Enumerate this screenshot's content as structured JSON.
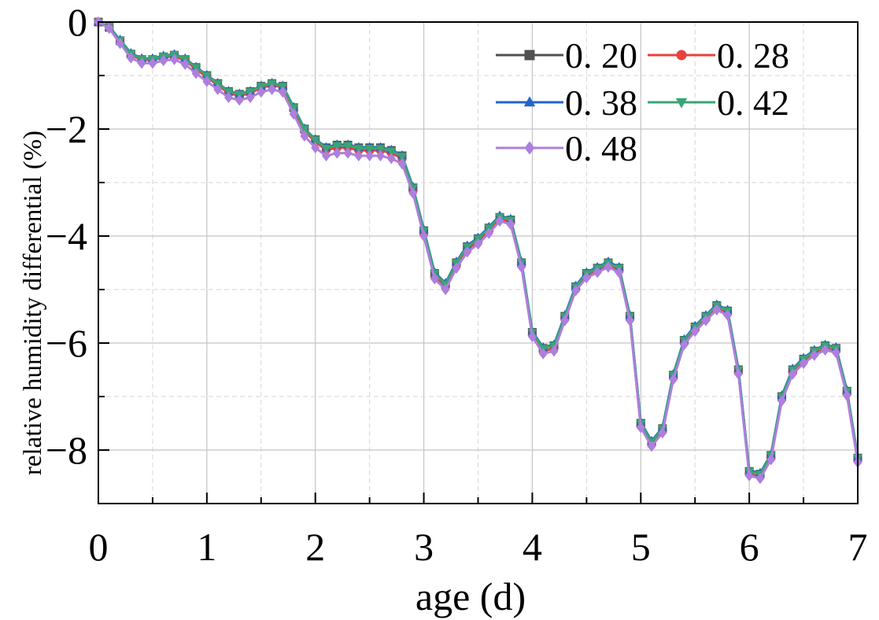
{
  "chart_data": {
    "type": "line",
    "xlabel": "age (d)",
    "ylabel": "relative humidity differential (%)",
    "xlim": [
      0,
      7
    ],
    "ylim": [
      -9,
      0
    ],
    "xticks": [
      0,
      1,
      2,
      3,
      4,
      5,
      6,
      7
    ],
    "yticks": [
      0,
      -2,
      -4,
      -6,
      -8
    ],
    "xtick_labels": [
      "0",
      "1",
      "2",
      "3",
      "4",
      "5",
      "6",
      "7"
    ],
    "ytick_labels": [
      "0",
      "−2",
      "−4",
      "−6",
      "−8"
    ],
    "grid": true,
    "legend_position": "top-right",
    "x": [
      0,
      0.1,
      0.2,
      0.3,
      0.4,
      0.5,
      0.6,
      0.7,
      0.8,
      0.9,
      1.0,
      1.1,
      1.2,
      1.3,
      1.4,
      1.5,
      1.6,
      1.7,
      1.8,
      1.9,
      2.0,
      2.1,
      2.2,
      2.3,
      2.4,
      2.5,
      2.6,
      2.7,
      2.8,
      2.9,
      3.0,
      3.1,
      3.2,
      3.3,
      3.4,
      3.5,
      3.6,
      3.7,
      3.8,
      3.9,
      4.0,
      4.1,
      4.2,
      4.3,
      4.4,
      4.5,
      4.6,
      4.7,
      4.8,
      4.9,
      5.0,
      5.1,
      5.2,
      5.3,
      5.4,
      5.5,
      5.6,
      5.7,
      5.8,
      5.9,
      6.0,
      6.1,
      6.2,
      6.3,
      6.4,
      6.5,
      6.6,
      6.7,
      6.8,
      6.9,
      7.0
    ],
    "series": [
      {
        "name": "0. 20",
        "color": "#505050",
        "marker": "square",
        "values": [
          0,
          -0.1,
          -0.35,
          -0.6,
          -0.7,
          -0.7,
          -0.65,
          -0.62,
          -0.7,
          -0.85,
          -1.0,
          -1.15,
          -1.3,
          -1.35,
          -1.3,
          -1.2,
          -1.15,
          -1.2,
          -1.6,
          -2.0,
          -2.2,
          -2.35,
          -2.3,
          -2.3,
          -2.35,
          -2.35,
          -2.35,
          -2.4,
          -2.5,
          -3.1,
          -3.9,
          -4.7,
          -4.9,
          -4.5,
          -4.2,
          -4.05,
          -3.85,
          -3.65,
          -3.7,
          -4.5,
          -5.8,
          -6.1,
          -6.05,
          -5.5,
          -4.95,
          -4.7,
          -4.6,
          -4.5,
          -4.6,
          -5.5,
          -7.5,
          -7.85,
          -7.6,
          -6.6,
          -5.95,
          -5.7,
          -5.5,
          -5.3,
          -5.4,
          -6.5,
          -8.4,
          -8.45,
          -8.1,
          -7.0,
          -6.5,
          -6.3,
          -6.15,
          -6.05,
          -6.1,
          -6.9,
          -8.15
        ]
      },
      {
        "name": "0. 28",
        "color": "#e8413d",
        "marker": "circle",
        "values": [
          0,
          -0.1,
          -0.36,
          -0.61,
          -0.71,
          -0.71,
          -0.66,
          -0.64,
          -0.72,
          -0.88,
          -1.03,
          -1.18,
          -1.33,
          -1.38,
          -1.33,
          -1.23,
          -1.18,
          -1.22,
          -1.63,
          -2.04,
          -2.24,
          -2.39,
          -2.35,
          -2.35,
          -2.4,
          -2.4,
          -2.4,
          -2.45,
          -2.55,
          -3.15,
          -3.95,
          -4.75,
          -4.95,
          -4.55,
          -4.25,
          -4.1,
          -3.9,
          -3.68,
          -3.75,
          -4.55,
          -5.85,
          -6.15,
          -6.1,
          -5.55,
          -5.0,
          -4.75,
          -4.65,
          -4.55,
          -4.65,
          -5.55,
          -7.55,
          -7.9,
          -7.65,
          -6.65,
          -6.0,
          -5.75,
          -5.55,
          -5.35,
          -5.45,
          -6.55,
          -8.45,
          -8.5,
          -8.15,
          -7.05,
          -6.55,
          -6.35,
          -6.2,
          -6.1,
          -6.15,
          -6.95,
          -8.2
        ]
      },
      {
        "name": "0. 38",
        "color": "#2166c8",
        "marker": "triangle-up",
        "values": [
          0,
          -0.09,
          -0.33,
          -0.58,
          -0.68,
          -0.68,
          -0.63,
          -0.6,
          -0.68,
          -0.84,
          -0.99,
          -1.14,
          -1.29,
          -1.34,
          -1.29,
          -1.19,
          -1.14,
          -1.19,
          -1.59,
          -1.99,
          -2.19,
          -2.34,
          -2.29,
          -2.29,
          -2.34,
          -2.34,
          -2.34,
          -2.39,
          -2.49,
          -3.08,
          -3.88,
          -4.68,
          -4.88,
          -4.48,
          -4.18,
          -4.03,
          -3.83,
          -3.62,
          -3.68,
          -4.48,
          -5.78,
          -6.08,
          -6.03,
          -5.48,
          -4.93,
          -4.68,
          -4.58,
          -4.48,
          -4.58,
          -5.48,
          -7.48,
          -7.83,
          -7.58,
          -6.58,
          -5.93,
          -5.68,
          -5.48,
          -5.28,
          -5.38,
          -6.48,
          -8.38,
          -8.43,
          -8.08,
          -6.98,
          -6.48,
          -6.28,
          -6.13,
          -6.03,
          -6.08,
          -6.88,
          -8.13
        ]
      },
      {
        "name": "0. 42",
        "color": "#3aa574",
        "marker": "triangle-down",
        "values": [
          0,
          -0.1,
          -0.34,
          -0.59,
          -0.69,
          -0.69,
          -0.64,
          -0.61,
          -0.69,
          -0.85,
          -1.0,
          -1.15,
          -1.3,
          -1.35,
          -1.3,
          -1.2,
          -1.15,
          -1.2,
          -1.6,
          -2.0,
          -2.2,
          -2.36,
          -2.31,
          -2.31,
          -2.36,
          -2.36,
          -2.36,
          -2.41,
          -2.51,
          -3.1,
          -3.9,
          -4.7,
          -4.9,
          -4.5,
          -4.2,
          -4.05,
          -3.85,
          -3.64,
          -3.7,
          -4.5,
          -5.8,
          -6.1,
          -6.05,
          -5.5,
          -4.95,
          -4.7,
          -4.6,
          -4.5,
          -4.6,
          -5.5,
          -7.5,
          -7.85,
          -7.6,
          -6.6,
          -5.95,
          -5.7,
          -5.5,
          -5.3,
          -5.4,
          -6.5,
          -8.4,
          -8.45,
          -8.1,
          -7.0,
          -6.5,
          -6.3,
          -6.15,
          -6.05,
          -6.1,
          -6.9,
          -8.15
        ]
      },
      {
        "name": "0. 48",
        "color": "#ae7fde",
        "marker": "diamond",
        "values": [
          0,
          -0.12,
          -0.4,
          -0.67,
          -0.77,
          -0.77,
          -0.72,
          -0.7,
          -0.79,
          -0.96,
          -1.11,
          -1.26,
          -1.41,
          -1.46,
          -1.41,
          -1.31,
          -1.26,
          -1.31,
          -1.72,
          -2.13,
          -2.35,
          -2.5,
          -2.45,
          -2.45,
          -2.5,
          -2.5,
          -2.5,
          -2.55,
          -2.65,
          -3.2,
          -4.0,
          -4.8,
          -5.0,
          -4.6,
          -4.3,
          -4.15,
          -3.95,
          -3.72,
          -3.78,
          -4.58,
          -5.88,
          -6.2,
          -6.15,
          -5.58,
          -5.02,
          -4.78,
          -4.68,
          -4.58,
          -4.68,
          -5.58,
          -7.58,
          -7.93,
          -7.68,
          -6.68,
          -6.03,
          -5.78,
          -5.58,
          -5.38,
          -5.48,
          -6.58,
          -8.48,
          -8.53,
          -8.18,
          -7.08,
          -6.58,
          -6.38,
          -6.23,
          -6.13,
          -6.18,
          -6.98,
          -8.23
        ]
      }
    ]
  }
}
